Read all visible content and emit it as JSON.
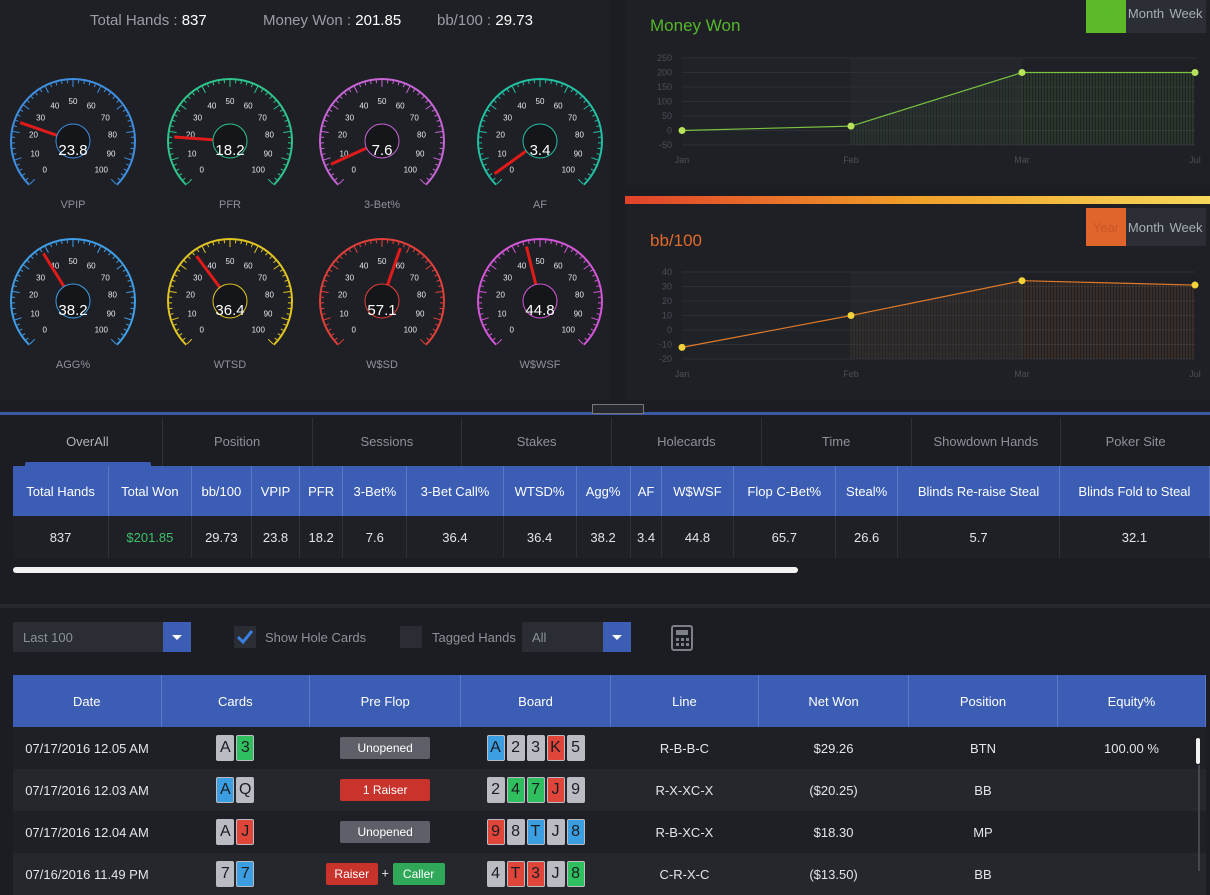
{
  "stats": {
    "total_hands_label": "Total Hands :",
    "total_hands": "837",
    "money_won_label": "Money Won :",
    "money_won": "201.85",
    "bb100_label": "bb/100 :",
    "bb100": "29.73"
  },
  "gauges": [
    {
      "label": "VPIP",
      "value": "23.8",
      "color": "#3f8ee0"
    },
    {
      "label": "PFR",
      "value": "18.2",
      "color": "#2fc48a"
    },
    {
      "label": "3-Bet%",
      "value": "7.6",
      "color": "#c765d6"
    },
    {
      "label": "AF",
      "value": "3.4",
      "color": "#23bfa2"
    },
    {
      "label": "AGG%",
      "value": "38.2",
      "color": "#3f9ee6"
    },
    {
      "label": "WTSD",
      "value": "36.4",
      "color": "#e0c522"
    },
    {
      "label": "W$SD",
      "value": "57.1",
      "color": "#e0403a"
    },
    {
      "label": "W$WSF",
      "value": "44.8",
      "color": "#d256d6"
    }
  ],
  "gauge_ticks": [
    "0",
    "10",
    "20",
    "30",
    "40",
    "50",
    "60",
    "70",
    "80",
    "90",
    "100"
  ],
  "charts": {
    "money_won": {
      "title": "Money Won",
      "title_color": "#56b62a",
      "ranges": [
        "Year",
        "Month",
        "Week"
      ],
      "active_color": "#5cba28",
      "chart_data": {
        "type": "line",
        "categories": [
          "Jan",
          "Feb",
          "Mar",
          "Jul"
        ],
        "values": [
          0,
          15,
          200,
          200
        ],
        "yticks": [
          "250",
          "200",
          "150",
          "100",
          "50",
          "0",
          "-50"
        ],
        "ylim": [
          -50,
          250
        ],
        "line_color": "#7bc442"
      }
    },
    "bb100": {
      "title": "bb/100",
      "title_color": "#e06a2a",
      "ranges": [
        "Year",
        "Month",
        "Week"
      ],
      "active_color": "#e0652a",
      "chart_data": {
        "type": "line",
        "categories": [
          "Jan",
          "Feb",
          "Mar",
          "Jul"
        ],
        "values": [
          -12,
          10,
          34,
          31
        ],
        "yticks": [
          "40",
          "30",
          "20",
          "10",
          "0",
          "-10",
          "-20"
        ],
        "ylim": [
          -20,
          40
        ],
        "line_color": "#e07a2a"
      }
    }
  },
  "tabs": [
    "OverAll",
    "Position",
    "Sessions",
    "Stakes",
    "Holecards",
    "Time",
    "Showdown Hands",
    "Poker Site"
  ],
  "summary": {
    "headers": [
      "Total Hands",
      "Total Won",
      "bb/100",
      "VPIP",
      "PFR",
      "3-Bet%",
      "3-Bet Call%",
      "WTSD%",
      "Agg%",
      "AF",
      "W$WSF",
      "Flop C-Bet%",
      "Steal%",
      "Blinds Re-raise Steal",
      "Blinds Fold to Steal"
    ],
    "values": [
      "837",
      "$201.85",
      "29.73",
      "23.8",
      "18.2",
      "7.6",
      "36.4",
      "36.4",
      "38.2",
      "3.4",
      "44.8",
      "65.7",
      "26.6",
      "5.7",
      "32.1"
    ]
  },
  "filters": {
    "range": "Last 100",
    "show_hole_cards": "Show Hole Cards",
    "tagged_hands": "Tagged Hands",
    "tag_filter": "All"
  },
  "hands": {
    "headers": [
      "Date",
      "Cards",
      "Pre Flop",
      "Board",
      "Line",
      "Net Won",
      "Position",
      "Equity%"
    ],
    "rows": [
      {
        "date": "07/17/2016 12.05 AM",
        "cards": [
          [
            "A",
            "#b9bcc2"
          ],
          [
            "3",
            "#2fbf5f"
          ]
        ],
        "preflop": [
          [
            "Unopened",
            "#5d6068"
          ]
        ],
        "board": [
          [
            "A",
            "#3a9ee0"
          ],
          [
            "2",
            "#b9bcc2"
          ],
          [
            "3",
            "#b9bcc2"
          ],
          [
            "K",
            "#e0453a"
          ],
          [
            "5",
            "#b9bcc2"
          ]
        ],
        "line": "R-B-B-C",
        "net": "$29.26",
        "net_sign": "pos",
        "position": "BTN",
        "equity": "100.00 %"
      },
      {
        "date": "07/17/2016 12.03 AM",
        "cards": [
          [
            "A",
            "#3a9ee0"
          ],
          [
            "Q",
            "#b9bcc2"
          ]
        ],
        "preflop": [
          [
            "1 Raiser",
            "#c8332b"
          ]
        ],
        "board": [
          [
            "2",
            "#b9bcc2"
          ],
          [
            "4",
            "#2fbf5f"
          ],
          [
            "7",
            "#2fbf5f"
          ],
          [
            "J",
            "#e0453a"
          ],
          [
            "9",
            "#b9bcc2"
          ]
        ],
        "line": "R-X-XC-X",
        "net": "($20.25)",
        "net_sign": "neg",
        "position": "BB",
        "equity": ""
      },
      {
        "date": "07/17/2016 12.04 AM",
        "cards": [
          [
            "A",
            "#b9bcc2"
          ],
          [
            "J",
            "#e0453a"
          ]
        ],
        "preflop": [
          [
            "Unopened",
            "#5d6068"
          ]
        ],
        "board": [
          [
            "9",
            "#e0453a"
          ],
          [
            "8",
            "#b9bcc2"
          ],
          [
            "T",
            "#3a9ee0"
          ],
          [
            "J",
            "#b9bcc2"
          ],
          [
            "8",
            "#3a9ee0"
          ]
        ],
        "line": "R-B-XC-X",
        "net": "$18.30",
        "net_sign": "pos",
        "position": "MP",
        "equity": ""
      },
      {
        "date": "07/16/2016 11.49 PM",
        "cards": [
          [
            "7",
            "#b9bcc2"
          ],
          [
            "7",
            "#3a9ee0"
          ]
        ],
        "preflop": [
          [
            "Raiser",
            "#c8332b"
          ],
          [
            "Caller",
            "#2fa85a"
          ]
        ],
        "board": [
          [
            "4",
            "#b9bcc2"
          ],
          [
            "T",
            "#e0453a"
          ],
          [
            "3",
            "#e0453a"
          ],
          [
            "J",
            "#b9bcc2"
          ],
          [
            "8",
            "#2fbf5f"
          ]
        ],
        "line": "C-R-X-C",
        "net": "($13.50)",
        "net_sign": "neg",
        "position": "BB",
        "equity": ""
      }
    ]
  }
}
